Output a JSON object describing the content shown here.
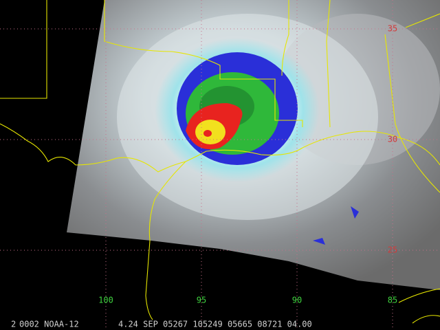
{
  "map": {
    "longitudes": [
      100,
      95,
      90,
      85
    ],
    "latitudes": [
      35,
      30,
      25
    ],
    "footer": {
      "channel": "2",
      "satellite": "0002 NOAA-12",
      "stamp": "4.24 SEP 05267 105249 05665 08721 04.00"
    }
  }
}
